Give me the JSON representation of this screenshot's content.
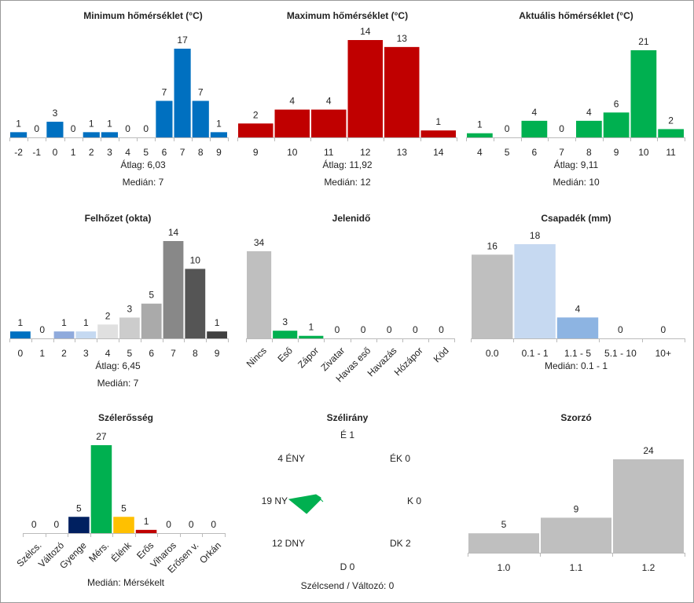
{
  "chart_data": [
    {
      "id": "min_temp",
      "type": "bar",
      "title": "Minimum hőmérséklet (°C)",
      "categories": [
        "-2",
        "-1",
        "0",
        "1",
        "2",
        "3",
        "4",
        "5",
        "6",
        "7",
        "8",
        "9"
      ],
      "values": [
        1,
        0,
        3,
        0,
        1,
        1,
        0,
        0,
        7,
        17,
        7,
        1
      ],
      "colors": [
        "#0070c0",
        "#0070c0",
        "#0070c0",
        "#0070c0",
        "#0070c0",
        "#0070c0",
        "#0070c0",
        "#0070c0",
        "#0070c0",
        "#0070c0",
        "#0070c0",
        "#0070c0"
      ],
      "stats": [
        {
          "label": "Átlag:",
          "value": "6,03"
        },
        {
          "label": "Medián:",
          "value": "7"
        }
      ]
    },
    {
      "id": "max_temp",
      "type": "bar",
      "title": "Maximum hőmérséklet (°C)",
      "categories": [
        "9",
        "10",
        "11",
        "12",
        "13",
        "14"
      ],
      "values": [
        2,
        4,
        4,
        14,
        13,
        1
      ],
      "colors": [
        "#c00000",
        "#c00000",
        "#c00000",
        "#c00000",
        "#c00000",
        "#c00000"
      ],
      "stats": [
        {
          "label": "Átlag:",
          "value": "11,92"
        },
        {
          "label": "Medián:",
          "value": "12"
        }
      ]
    },
    {
      "id": "act_temp",
      "type": "bar",
      "title": "Aktuális hőmérséklet (°C)",
      "categories": [
        "4",
        "5",
        "6",
        "7",
        "8",
        "9",
        "10",
        "11"
      ],
      "values": [
        1,
        0,
        4,
        0,
        4,
        6,
        21,
        2
      ],
      "colors": [
        "#00b050",
        "#00b050",
        "#00b050",
        "#00b050",
        "#00b050",
        "#00b050",
        "#00b050",
        "#00b050"
      ],
      "stats": [
        {
          "label": "Átlag:",
          "value": "9,11"
        },
        {
          "label": "Medián:",
          "value": "10"
        }
      ]
    },
    {
      "id": "cloud",
      "type": "bar",
      "title": "Felhőzet (okta)",
      "categories": [
        "0",
        "1",
        "2",
        "3",
        "4",
        "5",
        "6",
        "7",
        "8",
        "9"
      ],
      "values": [
        1,
        0,
        1,
        1,
        2,
        3,
        5,
        14,
        10,
        1
      ],
      "colors": [
        "#0070c0",
        "#8faadc",
        "#8faadc",
        "#c5d9f1",
        "#e0e0e0",
        "#cccccc",
        "#aaaaaa",
        "#888888",
        "#555555",
        "#404040"
      ],
      "stats": [
        {
          "label": "Átlag:",
          "value": "6,45"
        },
        {
          "label": "Medián:",
          "value": "7"
        }
      ]
    },
    {
      "id": "weather",
      "type": "bar",
      "title": "Jelenidő",
      "categories": [
        "Nincs",
        "Eső",
        "Zápor",
        "Zivatar",
        "Havas eső",
        "Havazás",
        "Hózápor",
        "Köd"
      ],
      "values": [
        34,
        3,
        1,
        0,
        0,
        0,
        0,
        0
      ],
      "colors": [
        "#bfbfbf",
        "#00b050",
        "#00b050",
        "#00b050",
        "#00b050",
        "#00b050",
        "#00b050",
        "#00b050"
      ],
      "stats": []
    },
    {
      "id": "precip",
      "type": "bar",
      "title": "Csapadék (mm)",
      "categories": [
        "0.0",
        "0.1 - 1",
        "1.1 - 5",
        "5.1 - 10",
        "10+"
      ],
      "values": [
        16,
        18,
        4,
        0,
        0
      ],
      "colors": [
        "#bfbfbf",
        "#c6d9f1",
        "#8db4e2",
        "#8db4e2",
        "#8db4e2"
      ],
      "stats": [
        {
          "label": "Medián:",
          "value": "0.1 - 1"
        }
      ]
    },
    {
      "id": "wind_speed",
      "type": "bar",
      "title": "Szélerősség",
      "categories": [
        "Szélcs.",
        "Változó",
        "Gyenge",
        "Mérs.",
        "Élénk",
        "Erős",
        "Viharos",
        "Erősen v.",
        "Orkán"
      ],
      "values": [
        0,
        0,
        5,
        27,
        5,
        1,
        0,
        0,
        0
      ],
      "colors": [
        "#002060",
        "#002060",
        "#002060",
        "#00b050",
        "#ffc000",
        "#c00000",
        "#c00000",
        "#c00000",
        "#c00000"
      ],
      "stats": [
        {
          "label": "Medián:",
          "value": "Mérsékelt"
        }
      ]
    },
    {
      "id": "wind_dir",
      "type": "radar",
      "title": "Szélirány",
      "directions": [
        "É",
        "ÉK",
        "K",
        "DK",
        "D",
        "DNY",
        "NY",
        "ÉNY"
      ],
      "values": [
        1,
        0,
        0,
        2,
        0,
        12,
        19,
        4
      ],
      "color": "#00b050",
      "footer_label": "Szélcsend / Változó:",
      "footer_value": "0"
    },
    {
      "id": "multiplier",
      "type": "bar",
      "title": "Szorzó",
      "categories": [
        "1.0",
        "1.1",
        "1.2"
      ],
      "values": [
        5,
        9,
        24
      ],
      "colors": [
        "#bfbfbf",
        "#bfbfbf",
        "#bfbfbf"
      ],
      "stats": []
    }
  ]
}
